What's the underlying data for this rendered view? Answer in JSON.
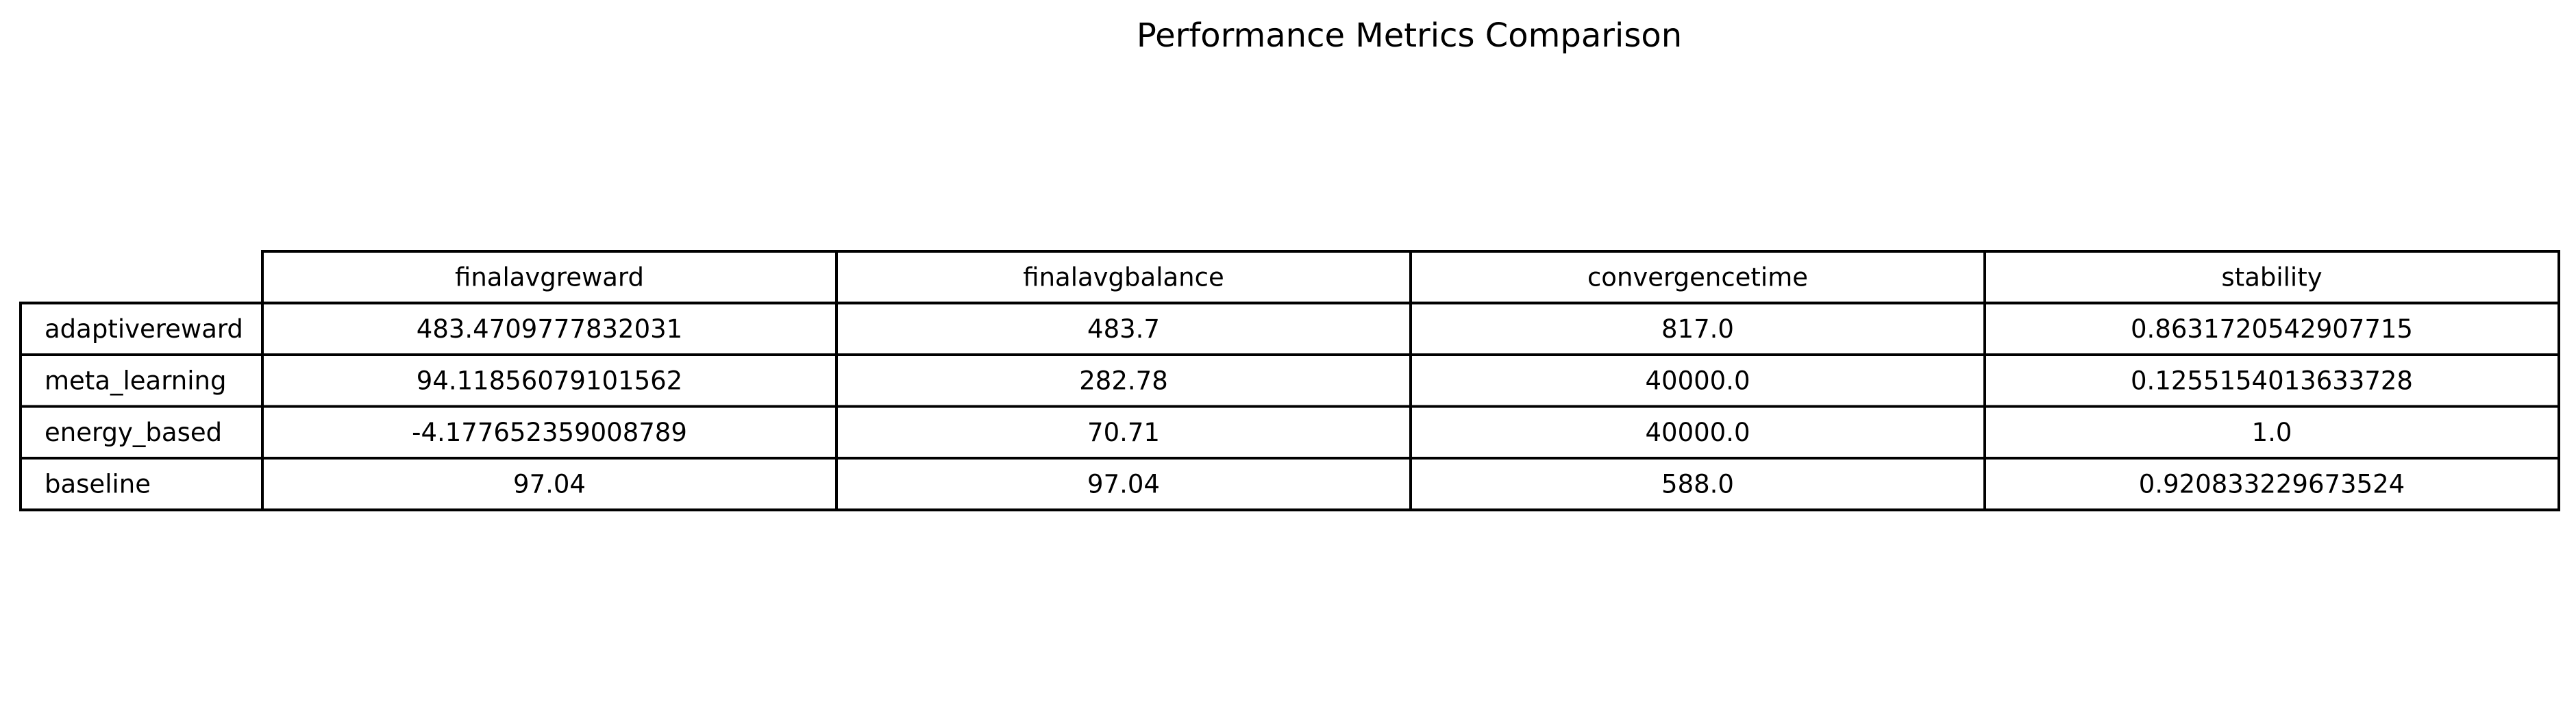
{
  "chart_data": {
    "type": "table",
    "title": "Performance Metrics Comparison",
    "columns": [
      "finalavgreward",
      "finalavgbalance",
      "convergencetime",
      "stability"
    ],
    "rows": [
      {
        "label": "adaptivereward",
        "values": [
          "483.4709777832031",
          "483.7",
          "817.0",
          "0.8631720542907715"
        ]
      },
      {
        "label": "meta_learning",
        "values": [
          "94.11856079101562",
          "282.78",
          "40000.0",
          "0.1255154013633728"
        ]
      },
      {
        "label": "energy_based",
        "values": [
          "-4.177652359008789",
          "70.71",
          "40000.0",
          "1.0"
        ]
      },
      {
        "label": "baseline",
        "values": [
          "97.04",
          "97.04",
          "588.0",
          "0.920833229673524"
        ]
      }
    ],
    "grid": true
  }
}
